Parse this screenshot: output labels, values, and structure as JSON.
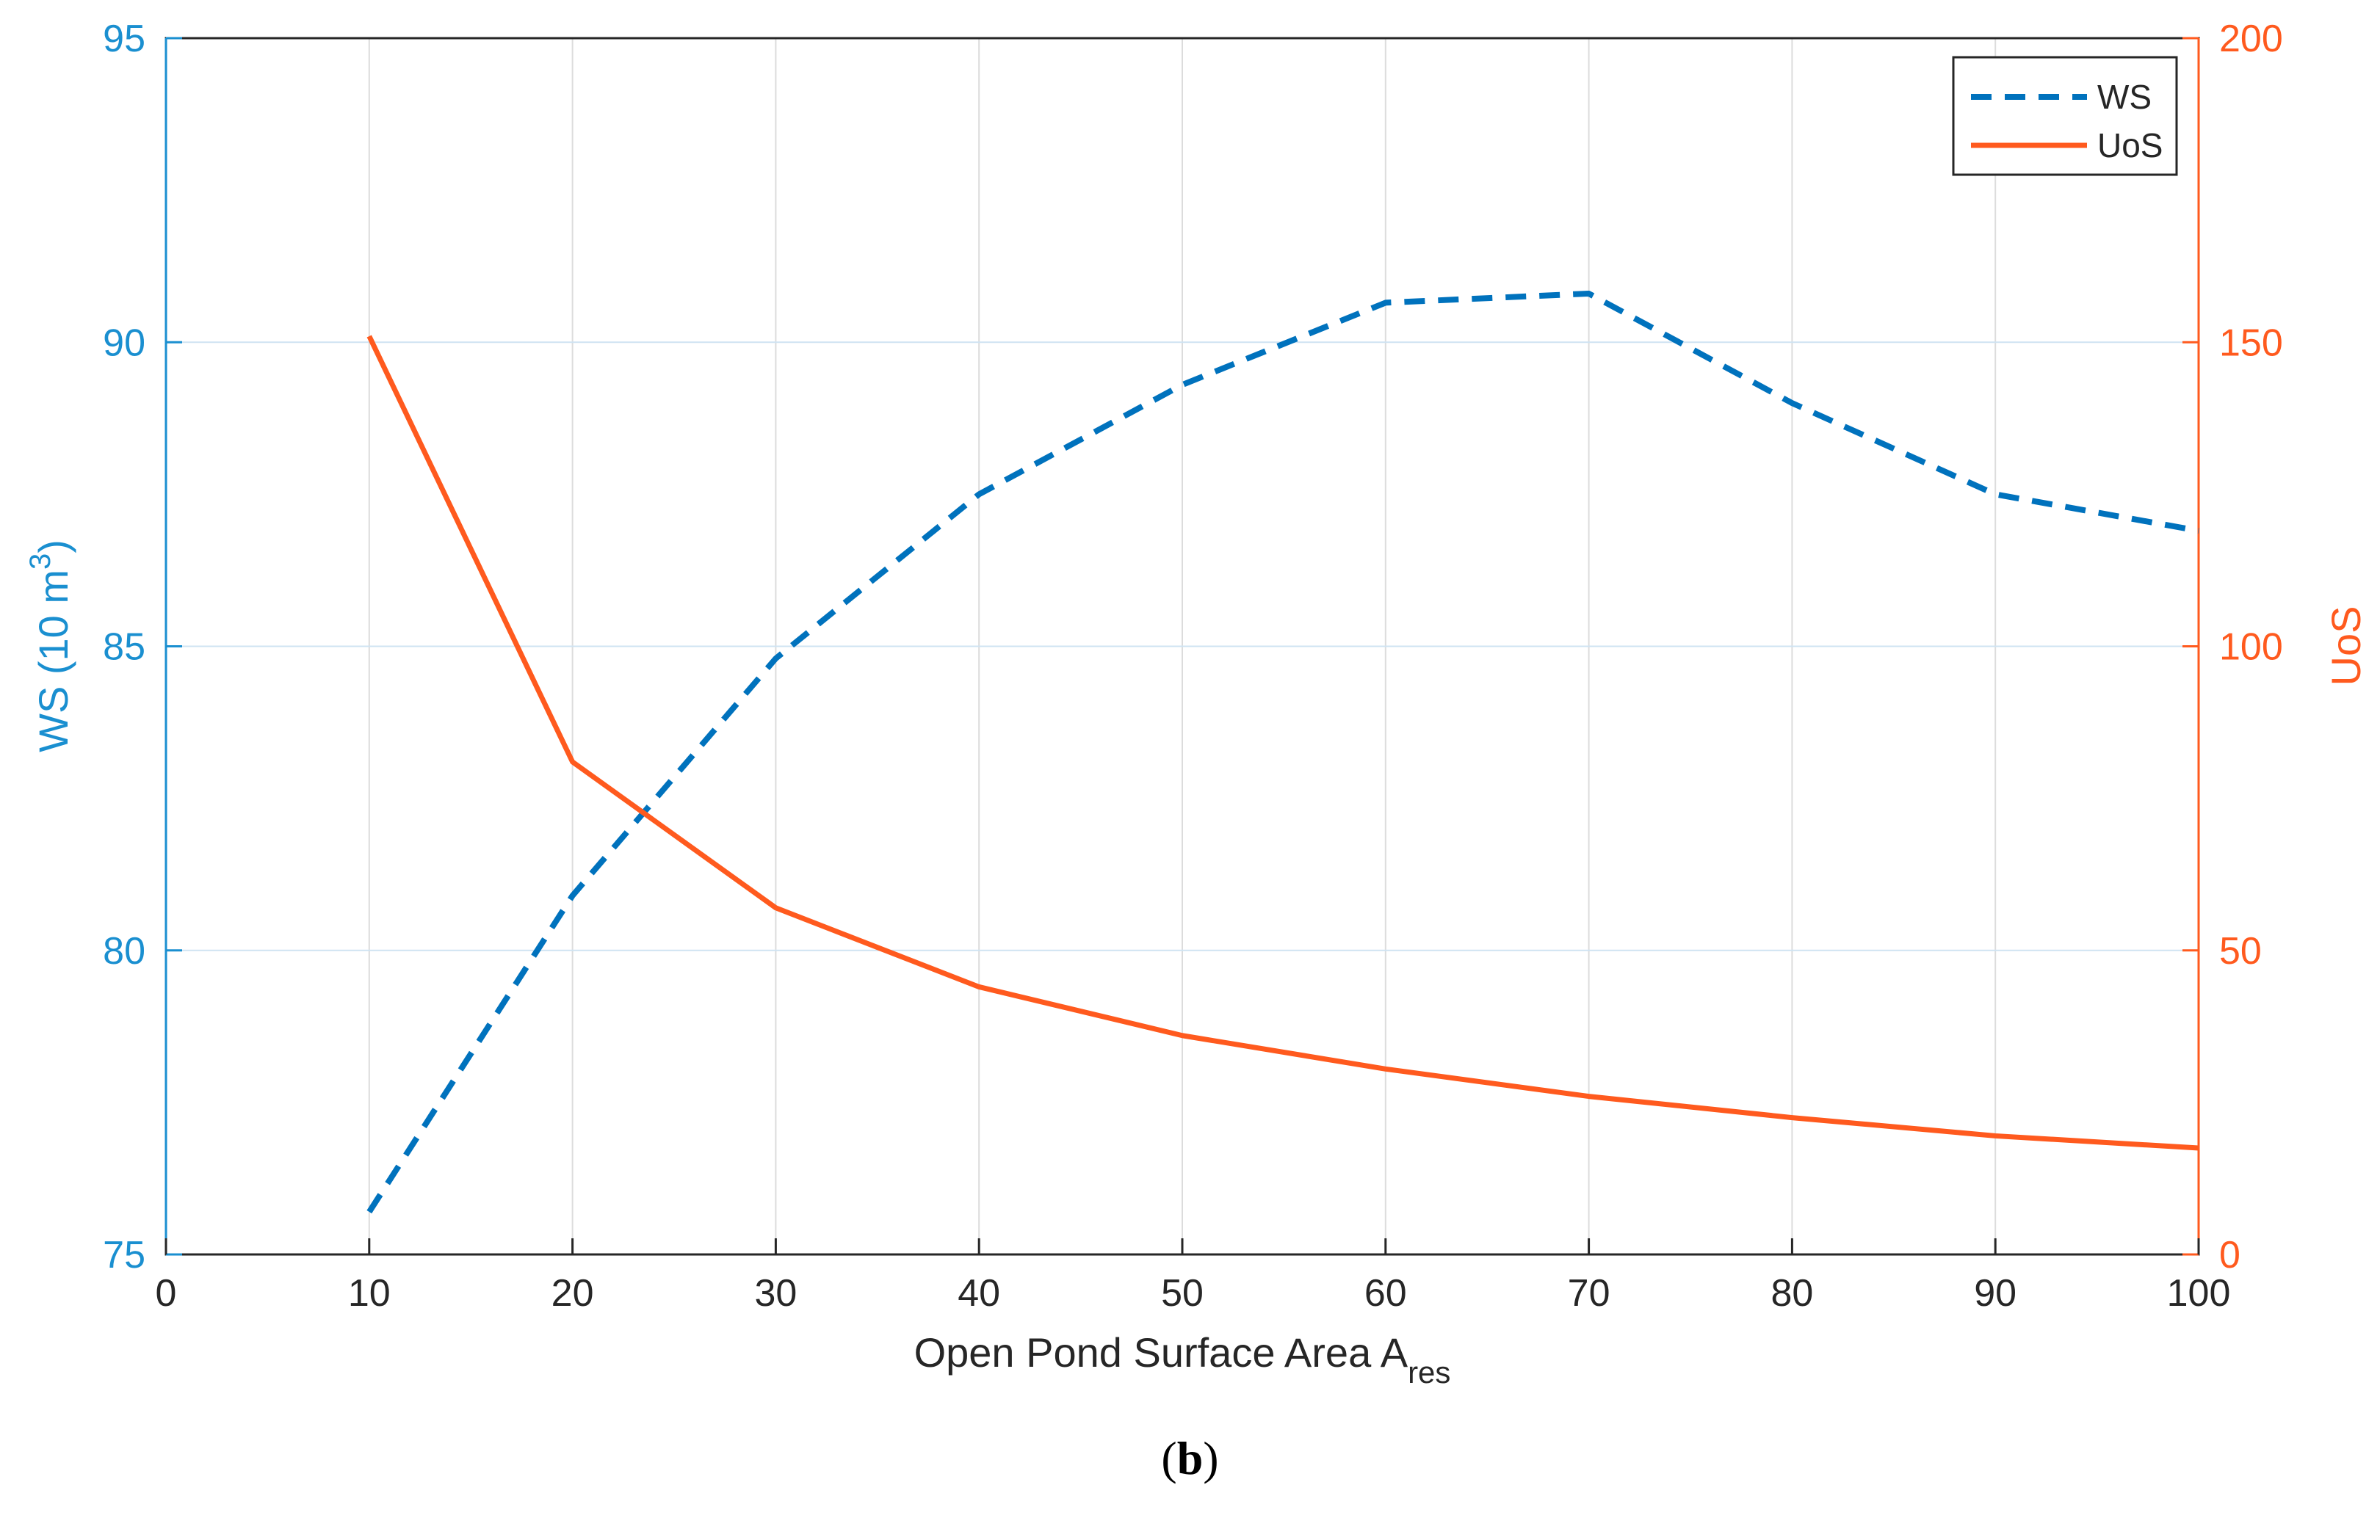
{
  "chart_data": {
    "type": "line",
    "xlabel": "Open Pond Surface Area",
    "xlabel_symbol": "A",
    "xlabel_subscript": "res",
    "ylabel_left": "WS (10 m",
    "ylabel_left_sup": "3",
    "ylabel_left_close": ")",
    "ylabel_right": "UoS",
    "xlim": [
      0,
      100
    ],
    "ylim_left": [
      75,
      95
    ],
    "ylim_right": [
      0,
      200
    ],
    "x_ticks": [
      0,
      10,
      20,
      30,
      40,
      50,
      60,
      70,
      80,
      90,
      100
    ],
    "y_left_ticks": [
      75,
      80,
      85,
      90,
      95
    ],
    "y_right_ticks": [
      0,
      50,
      100,
      150,
      200
    ],
    "grid": true,
    "legend_position": "top-right",
    "series": [
      {
        "name": "WS",
        "axis": "left",
        "style": "dashed",
        "color": "#0072BD",
        "x": [
          10,
          20,
          30,
          40,
          50,
          60,
          70,
          80,
          90,
          100
        ],
        "values": [
          75.7,
          80.9,
          84.8,
          87.5,
          89.3,
          90.65,
          90.8,
          89.0,
          87.5,
          86.9
        ]
      },
      {
        "name": "UoS",
        "axis": "right",
        "style": "solid",
        "color": "#FF5A1E",
        "x": [
          10,
          20,
          30,
          40,
          50,
          60,
          70,
          80,
          90,
          100
        ],
        "values": [
          151,
          81,
          57,
          44,
          36,
          30.5,
          26,
          22.5,
          19.5,
          17.5
        ]
      }
    ],
    "left_axis_color": "#1A8FD0",
    "right_axis_color": "#FF5A1E"
  },
  "caption": {
    "open": "(",
    "letter": "b",
    "close": ")"
  }
}
